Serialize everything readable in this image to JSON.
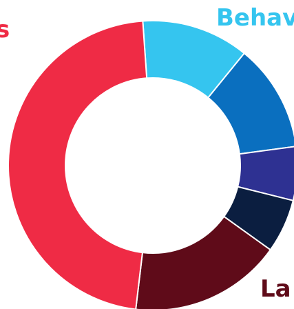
{
  "chart_data": {
    "type": "donut",
    "categories": [
      "Behav",
      null,
      null,
      null,
      "La",
      "s"
    ],
    "values": [
      12,
      12,
      6,
      6,
      17,
      47
    ],
    "colors": [
      "#35c5ef",
      "#0a6fbf",
      "#2e3192",
      "#0b1e40",
      "#5f0b19",
      "#ef2b45"
    ]
  }
}
